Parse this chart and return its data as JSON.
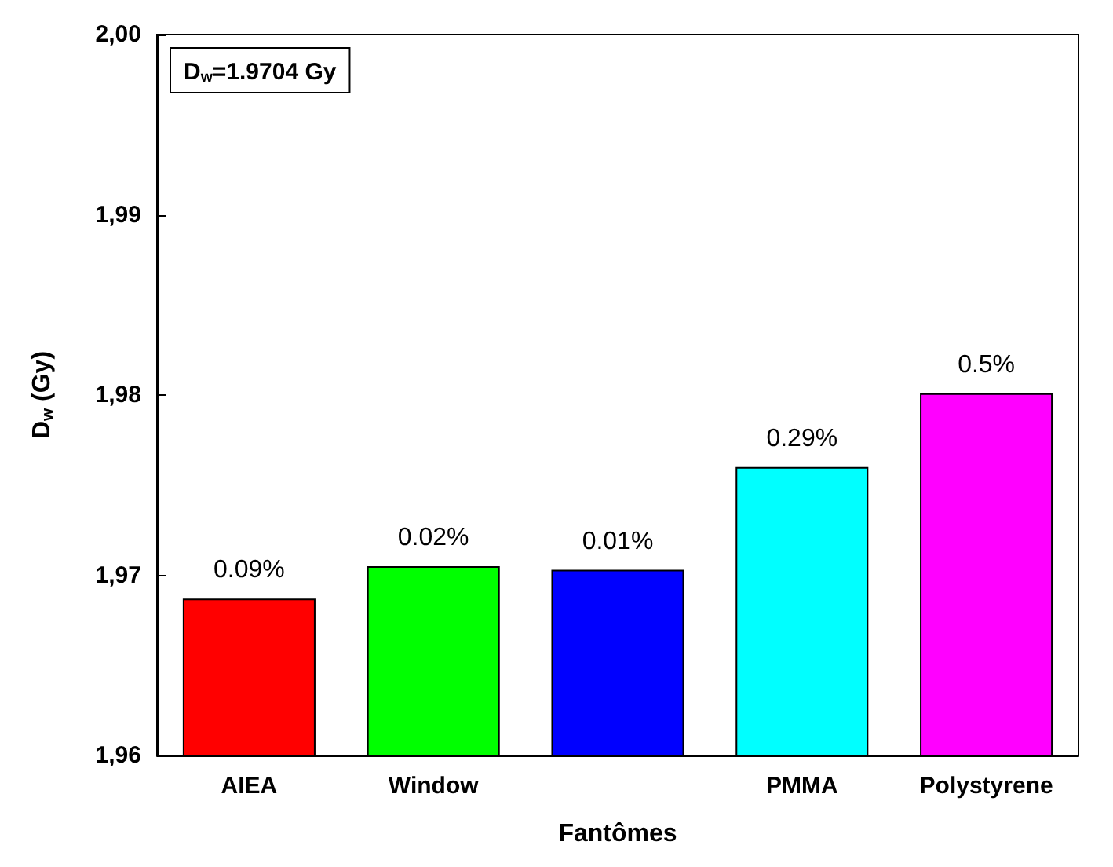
{
  "chart_data": {
    "type": "bar",
    "xlabel": "Fantômes",
    "ylabel": "D$_{w}$ (Gy)",
    "categories": [
      "AIEA",
      "Window",
      null,
      "PMMA",
      "Polystyrene"
    ],
    "values": [
      1.9687,
      1.9705,
      1.9703,
      1.976,
      1.9801
    ],
    "colors": [
      "#ff0000",
      "#00ff00",
      "#0000ff",
      "#00ffff",
      "#ff00ff"
    ],
    "ylim": [
      1.96,
      2.0
    ],
    "yticks": [
      {
        "value": 1.96,
        "label": "1,96"
      },
      {
        "value": 1.97,
        "label": "1,97"
      },
      {
        "value": 1.98,
        "label": "1,98"
      },
      {
        "value": 1.99,
        "label": "1,99"
      },
      {
        "value": 2.0,
        "label": "2,00"
      }
    ],
    "annotations": [
      "D$_{w}$=1.9704 Gy",
      {
        "text": "0.09%",
        "x": "AIEA",
        "y": 1.9687
      },
      {
        "text": "0.02%",
        "x": "Window",
        "y": 1.9705
      },
      {
        "text": "0.01%",
        "y": 1.9703
      },
      {
        "text": "0.29%",
        "x": "PMMA",
        "y": 1.976
      },
      {
        "text": "0.5%",
        "x": "Polystyrene",
        "y": 1.9801
      }
    ],
    "grid": false
  }
}
